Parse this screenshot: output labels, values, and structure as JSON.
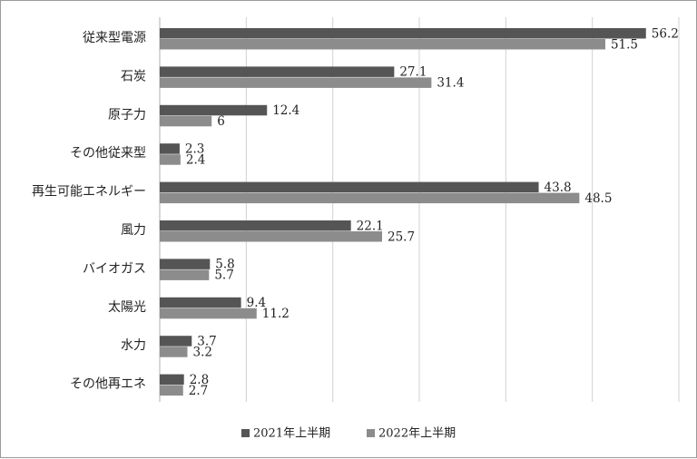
{
  "chart_data": {
    "type": "bar",
    "orientation": "horizontal",
    "categories": [
      "従来型電源",
      "石炭",
      "原子力",
      "その他従来型",
      "再生可能エネルギー",
      "風力",
      "バイオガス",
      "太陽光",
      "水力",
      "その他再エネ"
    ],
    "series": [
      {
        "name": "2021年上半期",
        "color": "#555555",
        "values": [
          56.2,
          27.1,
          12.4,
          2.3,
          43.8,
          22.1,
          5.8,
          9.4,
          3.7,
          2.8
        ],
        "labels": [
          "56.2",
          "27.1",
          "12.4",
          "2.3",
          "43.8",
          "22.1",
          "5.8",
          "9.4",
          "3.7",
          "2.8"
        ]
      },
      {
        "name": "2022年上半期",
        "color": "#8c8c8c",
        "values": [
          51.5,
          31.4,
          6,
          2.4,
          48.5,
          25.7,
          5.7,
          11.2,
          3.2,
          2.7
        ],
        "labels": [
          "51.5",
          "31.4",
          "6",
          "2.4",
          "48.5",
          "25.7",
          "5.7",
          "11.2",
          "3.2",
          "2.7"
        ]
      }
    ],
    "xlim": [
      0,
      60
    ],
    "x_gridline_step": 10,
    "grid": true,
    "legend_position": "bottom",
    "title": "",
    "xlabel": "",
    "ylabel": ""
  }
}
